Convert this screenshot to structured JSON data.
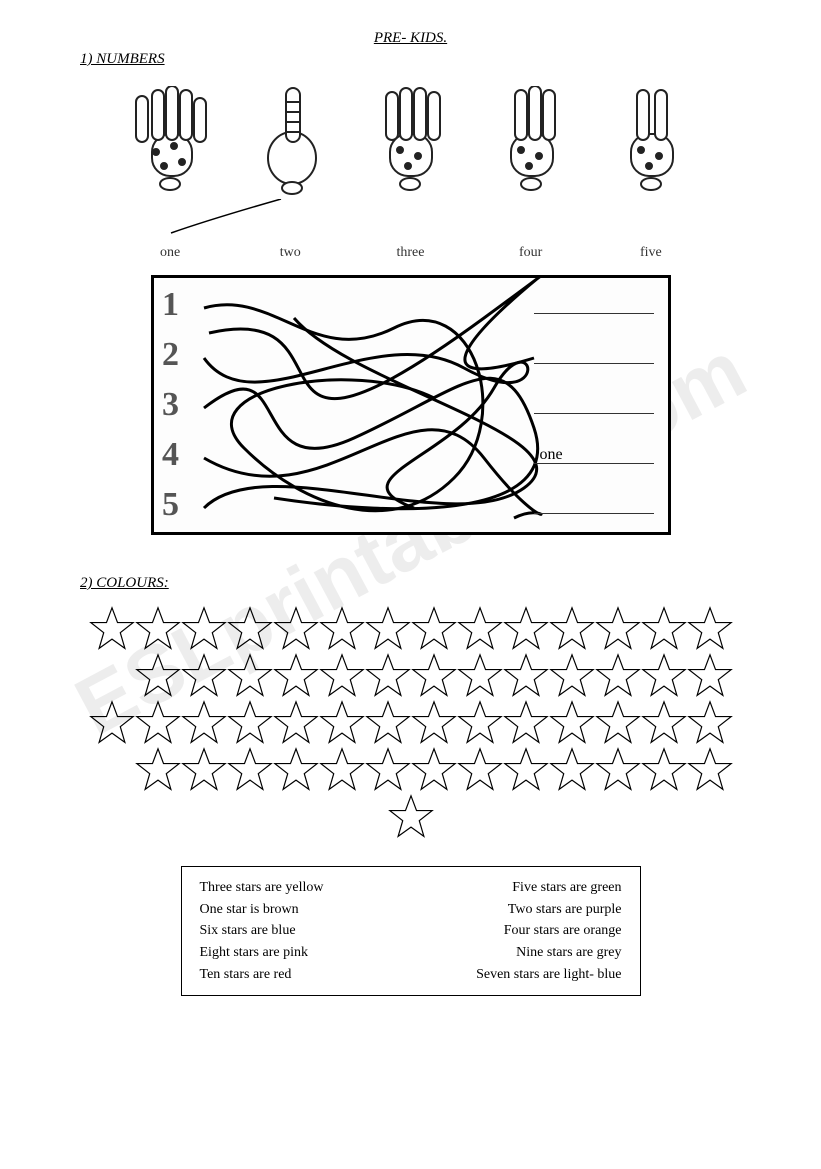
{
  "title": "PRE- KIDS.",
  "section1_heading": "1)  NUMBERS",
  "section2_heading": "2)  COLOURS:",
  "hand_labels": [
    "one",
    "two",
    "three",
    "four",
    "five"
  ],
  "maze": {
    "left_numbers": [
      "1",
      "2",
      "3",
      "4",
      "5"
    ],
    "right_answers": [
      "",
      "",
      "",
      "one",
      ""
    ]
  },
  "stars": {
    "rows": [
      14,
      13,
      14,
      13
    ],
    "solo": 1,
    "fill": "#ffffff",
    "stroke": "#000000",
    "size": 46
  },
  "instructions": {
    "left": [
      "Three stars are yellow",
      "One star is brown",
      "Six stars are blue",
      "Eight stars are pink",
      "Ten stars are red"
    ],
    "right": [
      "Five stars are green",
      "Two stars are purple",
      "Four stars are orange",
      "Nine stars are grey",
      "Seven stars are light- blue"
    ]
  },
  "watermark": "ESLprintables.com",
  "colors": {
    "page_bg": "#ffffff",
    "text": "#000000",
    "maze_border": "#000000",
    "watermark": "rgba(0,0,0,0.07)"
  }
}
